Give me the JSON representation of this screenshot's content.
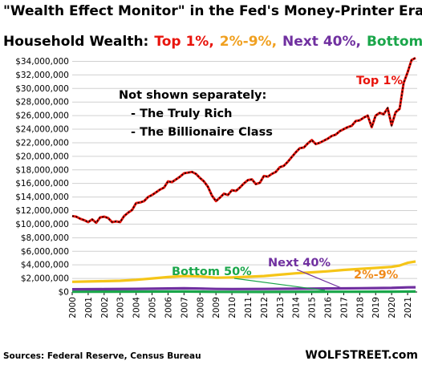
{
  "chart_data": {
    "type": "line",
    "title": "\"Wealth Effect Monitor\" in the Fed's Money-Printer Era",
    "subtitle": {
      "prefix": "Household Wealth:",
      "parts": [
        {
          "text": "Top 1%,",
          "color": "#e8140c"
        },
        {
          "text": "2%-9%,",
          "color": "#f0a020"
        },
        {
          "text": "Next 40%,",
          "color": "#7030a0"
        },
        {
          "text": "Bottom 50%",
          "color": "#1aa64a"
        }
      ]
    },
    "ylim": [
      0,
      35000000
    ],
    "yticks": [
      "$0",
      "$2,000,000",
      "$4,000,000",
      "$6,000,000",
      "$8,000,000",
      "$10,000,000",
      "$12,000,000",
      "$14,000,000",
      "$16,000,000",
      "$18,000,000",
      "$20,000,000",
      "$22,000,000",
      "$24,000,000",
      "$26,000,000",
      "$28,000,000",
      "$30,000,000",
      "$32,000,000",
      "$34,000,000"
    ],
    "ytick_values": [
      0,
      2000000,
      4000000,
      6000000,
      8000000,
      10000000,
      12000000,
      14000000,
      16000000,
      18000000,
      20000000,
      22000000,
      24000000,
      26000000,
      28000000,
      30000000,
      32000000,
      34000000
    ],
    "xlim": [
      2000,
      2021.6
    ],
    "xticks": [
      "2000",
      "2001",
      "2002",
      "2003",
      "2004",
      "2005",
      "2006",
      "2007",
      "2008",
      "2009",
      "2010",
      "2011",
      "2012",
      "2013",
      "2014",
      "2015",
      "2016",
      "2017",
      "2018",
      "2019",
      "2020",
      "2021"
    ],
    "series": [
      {
        "name": "Top 1%",
        "color": "#e8140c",
        "x": [
          2000,
          2000.25,
          2000.5,
          2000.75,
          2001,
          2001.25,
          2001.5,
          2001.75,
          2002,
          2002.25,
          2002.5,
          2002.75,
          2003,
          2003.25,
          2003.5,
          2003.75,
          2004,
          2004.25,
          2004.5,
          2004.75,
          2005,
          2005.25,
          2005.5,
          2005.75,
          2006,
          2006.25,
          2006.5,
          2006.75,
          2007,
          2007.25,
          2007.5,
          2007.75,
          2008,
          2008.25,
          2008.5,
          2008.75,
          2009,
          2009.25,
          2009.5,
          2009.75,
          2010,
          2010.25,
          2010.5,
          2010.75,
          2011,
          2011.25,
          2011.5,
          2011.75,
          2012,
          2012.25,
          2012.5,
          2012.75,
          2013,
          2013.25,
          2013.5,
          2013.75,
          2014,
          2014.25,
          2014.5,
          2014.75,
          2015,
          2015.25,
          2015.5,
          2015.75,
          2016,
          2016.25,
          2016.5,
          2016.75,
          2017,
          2017.25,
          2017.5,
          2017.75,
          2018,
          2018.25,
          2018.5,
          2018.75,
          2019,
          2019.25,
          2019.5,
          2019.75,
          2020,
          2020.25,
          2020.5,
          2020.75,
          2021,
          2021.25,
          2021.5
        ],
        "values": [
          11200000,
          11100000,
          10800000,
          10600000,
          10300000,
          10700000,
          10200000,
          11000000,
          11100000,
          10900000,
          10300000,
          10400000,
          10300000,
          11200000,
          11700000,
          12100000,
          13100000,
          13200000,
          13400000,
          14000000,
          14300000,
          14700000,
          15100000,
          15400000,
          16300000,
          16200000,
          16600000,
          17000000,
          17500000,
          17600000,
          17700000,
          17400000,
          16800000,
          16300000,
          15500000,
          14200000,
          13400000,
          13900000,
          14500000,
          14300000,
          15000000,
          14900000,
          15400000,
          16000000,
          16500000,
          16600000,
          15900000,
          16100000,
          17100000,
          17000000,
          17400000,
          17700000,
          18400000,
          18600000,
          19200000,
          19900000,
          20600000,
          21200000,
          21300000,
          21900000,
          22400000,
          21800000,
          22000000,
          22300000,
          22600000,
          23000000,
          23200000,
          23700000,
          24000000,
          24300000,
          24500000,
          25200000,
          25300000,
          25700000,
          26000000,
          24300000,
          26000000,
          26400000,
          26200000,
          27100000,
          24600000,
          26500000,
          27000000,
          30800000,
          32400000,
          34200000,
          34500000
        ]
      },
      {
        "name": "2%-9%",
        "color": "#f5c518",
        "x": [
          2000,
          2001,
          2002,
          2003,
          2004,
          2005,
          2006,
          2007,
          2008,
          2009,
          2010,
          2011,
          2012,
          2013,
          2014,
          2015,
          2016,
          2017,
          2018,
          2019,
          2020,
          2020.5,
          2021,
          2021.5
        ],
        "values": [
          1500000,
          1550000,
          1600000,
          1650000,
          1800000,
          2000000,
          2200000,
          2350000,
          2300000,
          2100000,
          2150000,
          2250000,
          2350000,
          2550000,
          2750000,
          2900000,
          3050000,
          3250000,
          3400000,
          3550000,
          3700000,
          3900000,
          4300000,
          4500000
        ]
      },
      {
        "name": "Next 40%",
        "color": "#7030a0",
        "x": [
          2000,
          2002,
          2004,
          2006,
          2007,
          2008,
          2009,
          2010,
          2012,
          2014,
          2016,
          2018,
          2019,
          2020,
          2021,
          2021.5
        ],
        "values": [
          400000,
          420000,
          460000,
          520000,
          540000,
          510000,
          450000,
          440000,
          450000,
          480000,
          520000,
          560000,
          580000,
          600000,
          680000,
          700000
        ]
      },
      {
        "name": "Bottom 50%",
        "color": "#1aa64a",
        "x": [
          2000,
          2005,
          2007,
          2009,
          2012,
          2016,
          2020,
          2021.5
        ],
        "values": [
          40000,
          60000,
          70000,
          20000,
          10000,
          30000,
          50000,
          70000
        ]
      }
    ],
    "annotations": {
      "top1": "Top 1%",
      "twoNine": "2%-9%",
      "next40": "Next 40%",
      "bottom50": "Bottom 50%"
    },
    "note": {
      "heading": "Not shown separately:",
      "line1": "- The Truly Rich",
      "line2": "- The Billionaire Class"
    },
    "grid": true,
    "legend": "none"
  },
  "footer": {
    "sources": "Sources: Federal Reserve, Census Bureau",
    "brand": "WOLFSTREET.com"
  }
}
